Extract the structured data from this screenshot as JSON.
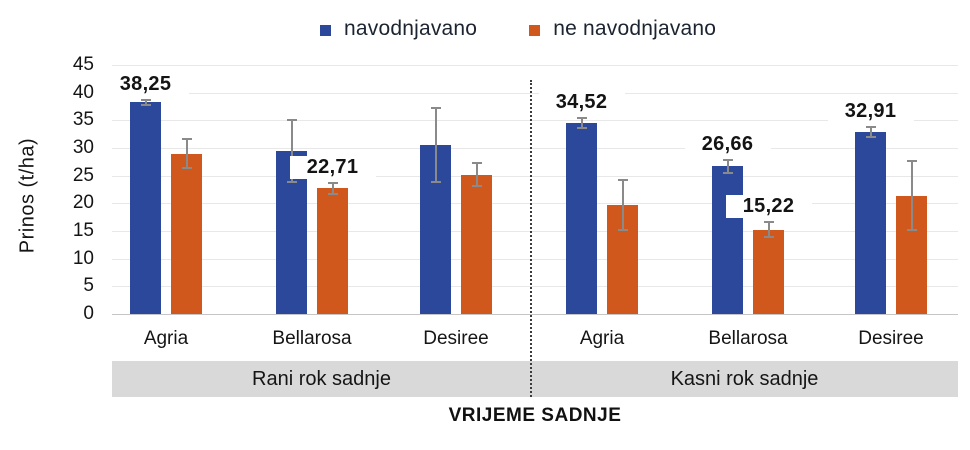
{
  "legend": {
    "items": [
      {
        "label": "navodnjavano",
        "color": "#2b489b"
      },
      {
        "label": "ne navodnjavano",
        "color": "#d1581d"
      }
    ],
    "position": "top"
  },
  "y_axis": {
    "title": "Prinos (t/ha)",
    "min": 0,
    "max": 45,
    "step": 5
  },
  "x_axis": {
    "title": "VRIJEME SADNJE",
    "panels": [
      {
        "label": "Rani rok sadnje",
        "varieties": [
          "Agria",
          "Bellarosa",
          "Desiree"
        ]
      },
      {
        "label": "Kasni rok sadnje",
        "varieties": [
          "Agria",
          "Bellarosa",
          "Desiree"
        ]
      }
    ]
  },
  "chart_data": {
    "type": "bar",
    "title": "",
    "xlabel": "VRIJEME SADNJE",
    "ylabel": "Prinos (t/ha)",
    "ylim": [
      0,
      45
    ],
    "grid": "horizontal",
    "legend_position": "top",
    "categories": [
      "Agria | Rani rok sadnje",
      "Bellarosa | Rani rok sadnje",
      "Desiree | Rani rok sadnje",
      "Agria | Kasni rok sadnje",
      "Bellarosa | Kasni rok sadnje",
      "Desiree | Kasni rok sadnje"
    ],
    "series": [
      {
        "name": "navodnjavano",
        "color": "#2b489b",
        "values": [
          38.25,
          29.5,
          30.5,
          34.52,
          26.66,
          32.91
        ],
        "errors": [
          0.6,
          5.8,
          6.9,
          1.0,
          1.3,
          1.1
        ],
        "data_labels": [
          "38,25",
          null,
          null,
          "34,52",
          "26,66",
          "32,91"
        ]
      },
      {
        "name": "ne navodnjavano",
        "color": "#d1581d",
        "values": [
          29.0,
          22.71,
          25.2,
          19.7,
          15.22,
          21.4
        ],
        "errors": [
          2.8,
          1.2,
          2.3,
          4.7,
          1.5,
          6.4
        ],
        "data_labels": [
          null,
          "22,71",
          null,
          null,
          "15,22",
          null
        ]
      }
    ],
    "error_bars": true
  }
}
